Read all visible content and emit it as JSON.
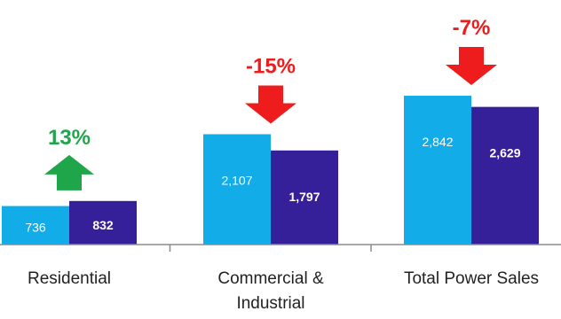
{
  "chart_data": {
    "type": "bar",
    "categories": [
      [
        "Residential"
      ],
      [
        "Commercial &",
        "Industrial"
      ],
      [
        "Total Power Sales"
      ]
    ],
    "series": [
      {
        "values": [
          736,
          2107,
          2842
        ],
        "color": "#12ace9"
      },
      {
        "values": [
          832,
          1797,
          2629
        ],
        "color": "#35209a"
      }
    ],
    "value_labels": [
      [
        "736",
        "2,107",
        "2,842"
      ],
      [
        "832",
        "1,797",
        "2,629"
      ]
    ],
    "changes": [
      {
        "label": "13%",
        "direction": "up",
        "color": "#1fa64a"
      },
      {
        "label": "-15%",
        "direction": "down",
        "color": "#ee1c1c"
      },
      {
        "label": "-7%",
        "direction": "down",
        "color": "#ee1c1c"
      }
    ],
    "ylim": [
      0,
      3200
    ],
    "grid": false,
    "legend": "none"
  }
}
